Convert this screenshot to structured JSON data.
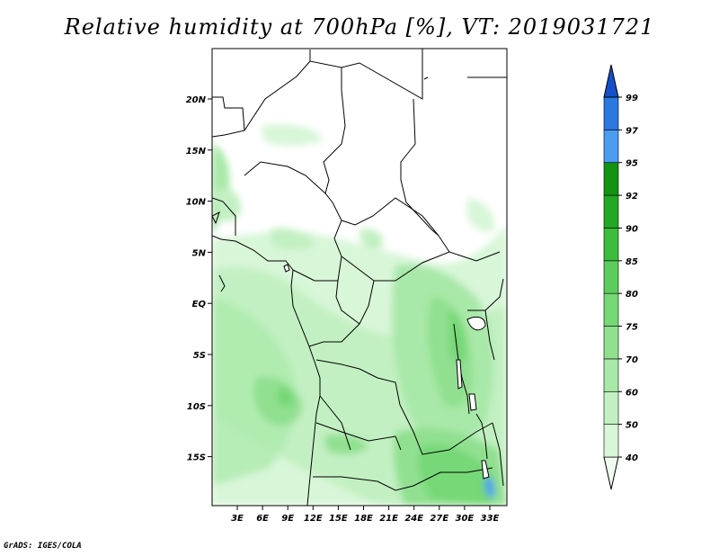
{
  "title": "Relative humidity at 700hPa [%], VT: 2019031721",
  "credit": "GrADS: IGES/COLA",
  "map": {
    "lat_labels": [
      "20N",
      "15N",
      "10N",
      "5N",
      "EQ",
      "5S",
      "10S",
      "15S"
    ],
    "lon_labels": [
      "3E",
      "6E",
      "9E",
      "12E",
      "15E",
      "18E",
      "21E",
      "24E",
      "27E",
      "30E",
      "33E"
    ]
  },
  "colorbar": {
    "levels": [
      "40",
      "50",
      "60",
      "70",
      "75",
      "80",
      "85",
      "90",
      "92",
      "95",
      "97",
      "99"
    ],
    "colors": [
      "#f0fcf0",
      "#d8f6d8",
      "#c2f0c2",
      "#a8e8a8",
      "#90e090",
      "#76d876",
      "#5ccc5c",
      "#3cbc3c",
      "#22a822",
      "#129412",
      "#4c9cf0",
      "#2a78e0",
      "#1450c8"
    ]
  },
  "colors": {
    "ocean_humid": "#c2f0c2",
    "dry_north": "#ffffff",
    "border_lines": "#000000"
  }
}
